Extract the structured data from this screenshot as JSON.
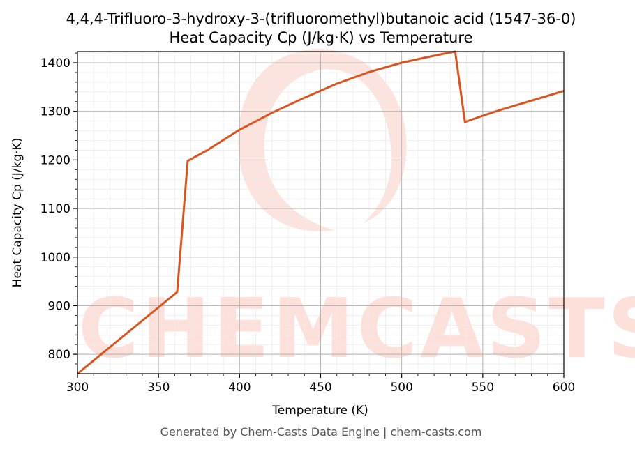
{
  "chart_data": {
    "type": "line",
    "title": "4,4,4-Trifluoro-3-hydroxy-3-(trifluoromethyl)butanoic acid (1547-36-0)",
    "subtitle": "Heat Capacity Cp (J/kg·K) vs Temperature",
    "xlabel": "Temperature (K)",
    "ylabel": "Heat Capacity Cp (J/kg·K)",
    "xlim": [
      300,
      600
    ],
    "ylim": [
      760,
      1423
    ],
    "xticks": [
      300,
      350,
      400,
      450,
      500,
      550,
      600
    ],
    "yticks": [
      800,
      900,
      1000,
      1100,
      1200,
      1300,
      1400
    ],
    "grid": true,
    "line_color": "#d9541e",
    "series": [
      {
        "x": [
          300,
          361.5,
          368,
          380,
          400,
          420,
          440,
          460,
          480,
          500,
          515,
          525,
          533,
          539,
          550,
          560,
          570,
          580,
          590,
          600
        ],
        "values": [
          760,
          928,
          1198,
          1220,
          1262,
          1297,
          1328,
          1357,
          1381,
          1400,
          1411,
          1418,
          1423,
          1278,
          1291,
          1302,
          1312,
          1322,
          1332,
          1342
        ]
      }
    ]
  },
  "watermark": {
    "text": "CHEMCASTS",
    "color": "#fde0da"
  },
  "footer": "Generated by Chem-Casts Data Engine | chem-casts.com"
}
